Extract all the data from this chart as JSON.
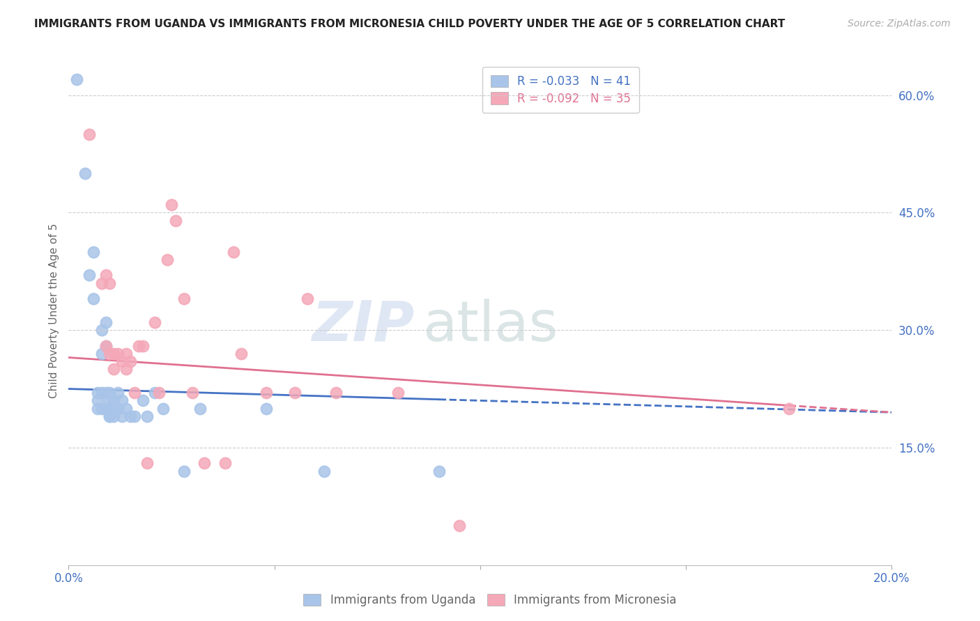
{
  "title": "IMMIGRANTS FROM UGANDA VS IMMIGRANTS FROM MICRONESIA CHILD POVERTY UNDER THE AGE OF 5 CORRELATION CHART",
  "source": "Source: ZipAtlas.com",
  "ylabel": "Child Poverty Under the Age of 5",
  "legend_uganda": "Immigrants from Uganda",
  "legend_micronesia": "Immigrants from Micronesia",
  "uganda_R": "-0.033",
  "uganda_N": "41",
  "micronesia_R": "-0.092",
  "micronesia_N": "35",
  "xlim": [
    0.0,
    0.2
  ],
  "ylim": [
    0.0,
    0.65
  ],
  "xticks": [
    0.0,
    0.05,
    0.1,
    0.15,
    0.2
  ],
  "xtick_labels": [
    "0.0%",
    "",
    "",
    "",
    "20.0%"
  ],
  "yticks_right": [
    0.15,
    0.3,
    0.45,
    0.6
  ],
  "ytick_labels_right": [
    "15.0%",
    "30.0%",
    "45.0%",
    "60.0%"
  ],
  "color_uganda": "#a8c4e8",
  "color_micronesia": "#f4a8b8",
  "color_trendline_uganda": "#4472c4",
  "color_trendline_micronesia": "#e07090",
  "uganda_x": [
    0.002,
    0.004,
    0.005,
    0.006,
    0.006,
    0.007,
    0.007,
    0.007,
    0.008,
    0.008,
    0.008,
    0.008,
    0.009,
    0.009,
    0.009,
    0.009,
    0.01,
    0.01,
    0.01,
    0.01,
    0.01,
    0.01,
    0.011,
    0.011,
    0.011,
    0.012,
    0.012,
    0.013,
    0.013,
    0.014,
    0.015,
    0.016,
    0.018,
    0.019,
    0.021,
    0.023,
    0.028,
    0.032,
    0.048,
    0.062,
    0.09
  ],
  "uganda_y": [
    0.62,
    0.5,
    0.37,
    0.4,
    0.34,
    0.22,
    0.21,
    0.2,
    0.3,
    0.27,
    0.22,
    0.2,
    0.31,
    0.28,
    0.22,
    0.2,
    0.22,
    0.21,
    0.2,
    0.2,
    0.19,
    0.19,
    0.21,
    0.2,
    0.19,
    0.22,
    0.2,
    0.21,
    0.19,
    0.2,
    0.19,
    0.19,
    0.21,
    0.19,
    0.22,
    0.2,
    0.12,
    0.2,
    0.2,
    0.12,
    0.12
  ],
  "micronesia_x": [
    0.005,
    0.008,
    0.009,
    0.009,
    0.01,
    0.01,
    0.011,
    0.011,
    0.012,
    0.013,
    0.014,
    0.014,
    0.015,
    0.016,
    0.017,
    0.018,
    0.019,
    0.021,
    0.022,
    0.024,
    0.025,
    0.026,
    0.028,
    0.03,
    0.033,
    0.038,
    0.04,
    0.042,
    0.048,
    0.055,
    0.058,
    0.065,
    0.08,
    0.095,
    0.175
  ],
  "micronesia_y": [
    0.55,
    0.36,
    0.37,
    0.28,
    0.36,
    0.27,
    0.27,
    0.25,
    0.27,
    0.26,
    0.27,
    0.25,
    0.26,
    0.22,
    0.28,
    0.28,
    0.13,
    0.31,
    0.22,
    0.39,
    0.46,
    0.44,
    0.34,
    0.22,
    0.13,
    0.13,
    0.4,
    0.27,
    0.22,
    0.22,
    0.34,
    0.22,
    0.22,
    0.05,
    0.2
  ],
  "trendline_uganda_x0": 0.0,
  "trendline_uganda_x1": 0.2,
  "trendline_uganda_y0": 0.225,
  "trendline_uganda_y1": 0.195,
  "trendline_mic_x0": 0.0,
  "trendline_mic_x1": 0.2,
  "trendline_mic_y0": 0.265,
  "trendline_mic_y1": 0.195,
  "trendline_solid_end_uganda": 0.09,
  "trendline_solid_end_micronesia": 0.175,
  "background_color": "#ffffff",
  "grid_color": "#cccccc",
  "title_fontsize": 11,
  "tick_label_color": "#4472c4"
}
